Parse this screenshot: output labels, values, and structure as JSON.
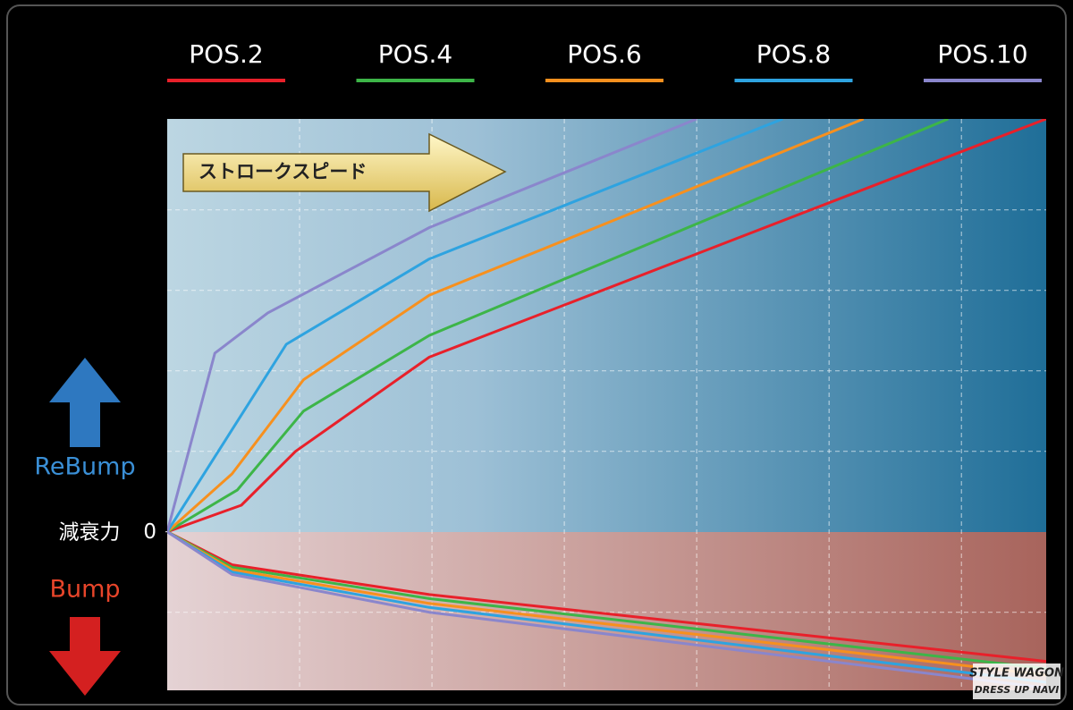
{
  "chart_data": {
    "type": "line",
    "y_label": "減衰力",
    "upper_label": "ReBump",
    "lower_label": "Bump",
    "x_direction_label": "ストロークスピード",
    "xlim": [
      0,
      6.64
    ],
    "ylim": [
      -1.97,
      5.13
    ],
    "yticks": [
      0
    ],
    "xgrid": [
      1,
      2,
      3,
      4,
      5,
      6
    ],
    "ygrid": [
      -1,
      1,
      2,
      3,
      4
    ],
    "series": [
      {
        "name": "POS.2",
        "color": "#e8202a",
        "x": [
          0,
          0.56,
          0.97,
          1.98,
          6.64
        ],
        "values": [
          0,
          0.33,
          1.0,
          2.17,
          5.13
        ],
        "bump_x": [
          0,
          0.49,
          1.98,
          6.64
        ],
        "bump_values": [
          0,
          -0.41,
          -0.78,
          -1.61
        ]
      },
      {
        "name": "POS.4",
        "color": "#3db548",
        "x": [
          0,
          0.53,
          1.03,
          1.98,
          5.9
        ],
        "values": [
          0,
          0.52,
          1.5,
          2.44,
          5.13
        ],
        "bump_x": [
          0,
          0.49,
          1.98,
          6.64
        ],
        "bump_values": [
          0,
          -0.44,
          -0.83,
          -1.7
        ]
      },
      {
        "name": "POS.6",
        "color": "#f7901e",
        "x": [
          0,
          0.49,
          1.03,
          1.98,
          5.26
        ],
        "values": [
          0,
          0.72,
          1.89,
          2.94,
          5.13
        ],
        "bump_x": [
          0,
          0.49,
          1.98,
          6.64
        ],
        "bump_values": [
          0,
          -0.47,
          -0.89,
          -1.78
        ]
      },
      {
        "name": "POS.8",
        "color": "#2ea3e0",
        "x": [
          0,
          0.9,
          1.98,
          4.65
        ],
        "values": [
          0,
          2.33,
          3.39,
          5.13
        ],
        "bump_x": [
          0,
          0.49,
          1.98,
          6.64
        ],
        "bump_values": [
          0,
          -0.5,
          -0.94,
          -1.87
        ]
      },
      {
        "name": "POS.10",
        "color": "#8a86cc",
        "x": [
          0,
          0.36,
          0.76,
          1.98,
          4.0
        ],
        "values": [
          0,
          2.22,
          2.72,
          3.78,
          5.13
        ],
        "bump_x": [
          0,
          0.49,
          1.98,
          6.64
        ],
        "bump_values": [
          0,
          -0.53,
          -1.0,
          -1.94
        ]
      }
    ],
    "watermark": [
      "STYLE WAGON",
      "DRESS UP NAVI"
    ]
  }
}
